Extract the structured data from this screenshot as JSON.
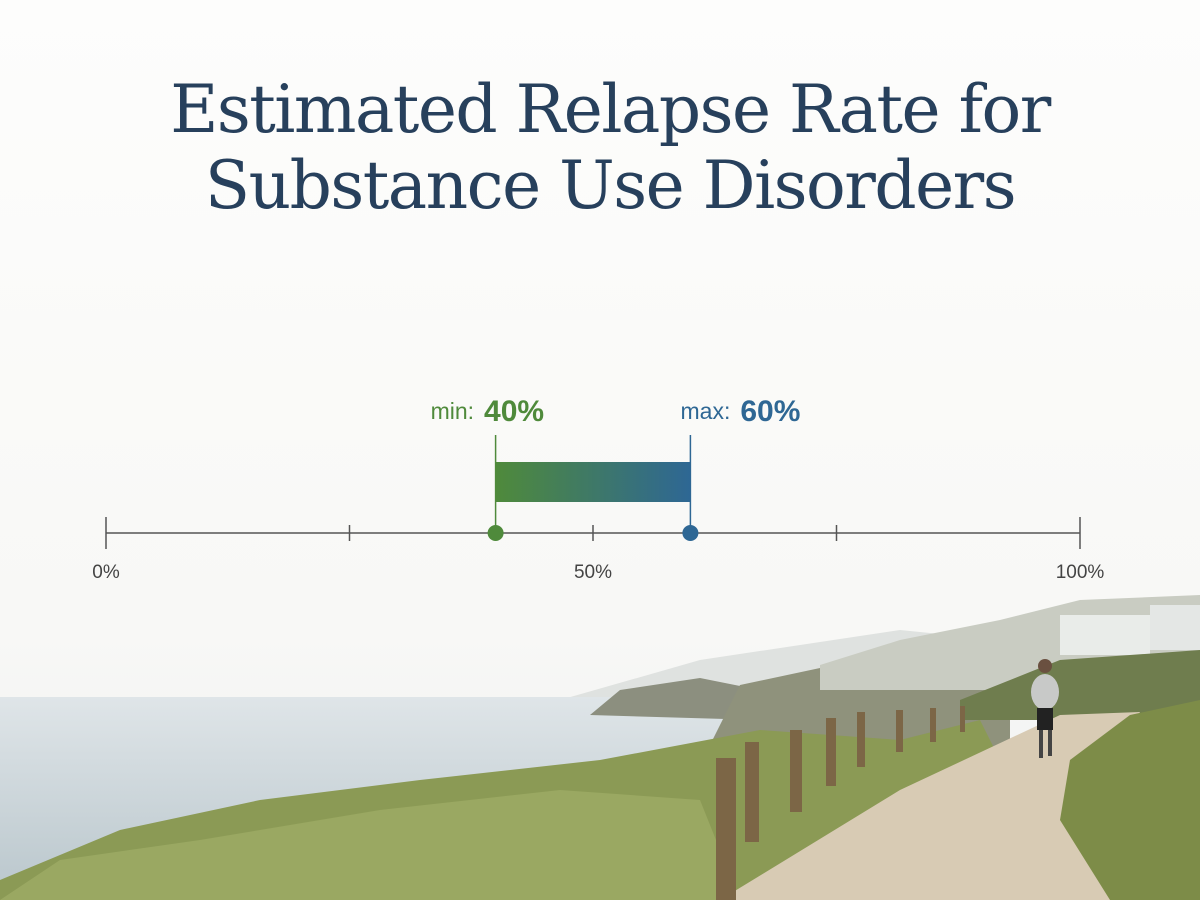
{
  "chart_data": {
    "type": "range",
    "title": "Estimated Relapse Rate for Substance Use Disorders",
    "min_label": "min:",
    "max_label": "max:",
    "values": [
      40,
      60
    ],
    "value_labels": [
      "40%",
      "60%"
    ],
    "colors": [
      "#4f8a3b",
      "#2e6794"
    ],
    "xlim": [
      0,
      100
    ],
    "xticks": [
      {
        "value": 0,
        "label": "0%"
      },
      {
        "value": 50,
        "label": "50%"
      },
      {
        "value": 100,
        "label": "100%"
      }
    ],
    "minor_xticks": [
      25,
      75
    ]
  }
}
